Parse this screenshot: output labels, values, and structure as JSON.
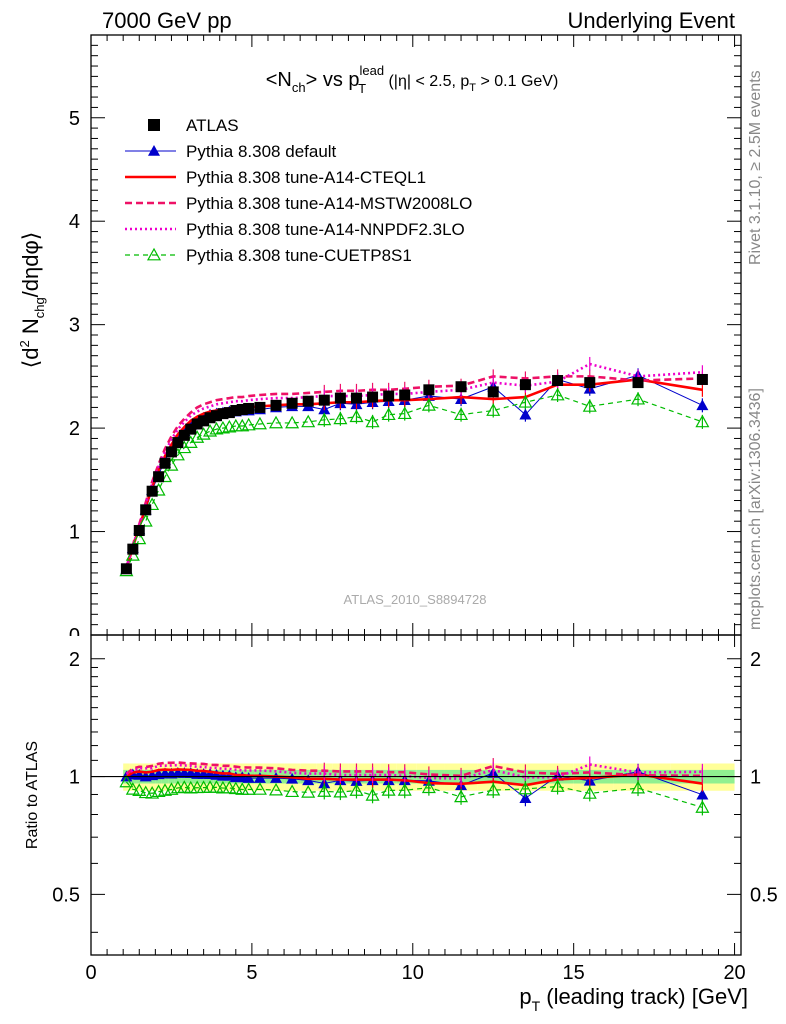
{
  "header": {
    "left": "7000 GeV pp",
    "right": "Underlying Event"
  },
  "side_labels": {
    "rivet": "Rivet 3.1.10, ≥ 2.5M events",
    "mcplots": "mcplots.cern.ch [arXiv:1306.3436]"
  },
  "watermark": "ATLAS_2010_S8894728",
  "colors": {
    "atlas": "#000000",
    "default": "#0000cc",
    "cteql1": "#ff0000",
    "mstw": "#ee1166",
    "nnpdf": "#ee00cc",
    "cuetp8s1": "#00bb00",
    "band_inner": "#90f090",
    "band_outer": "#ffff99"
  },
  "chart_data": {
    "type": "line",
    "title": "<Nch> vs pT lead (|η| < 2.5, pT > 0.1 GeV)",
    "title_parts": {
      "a": "<N",
      "a_sub": "ch",
      "b": "> vs p",
      "b_sup": "lead",
      "b_sub": "T",
      "c": " (|η| < 2.5, p",
      "c_sub": "T",
      "d": " > 0.1 GeV)"
    },
    "xlabel": "p_T (leading track) [GeV]",
    "xlabel_parts": {
      "a": "p",
      "a_sub": "T",
      "b": " (leading track) [GeV]"
    },
    "ylabel": "⟨d² N_chg/dηdφ⟩",
    "ylabel_parts": {
      "a": "⟨d",
      "a_sup": "2",
      "b": " N",
      "b_sub": "chg",
      "c": "/dηdφ⟩"
    },
    "ratio_ylabel": "Ratio to ATLAS",
    "xlim": [
      0,
      20.2
    ],
    "ylim": [
      0,
      5.8
    ],
    "ratio_ylim": [
      0.35,
      2.3
    ],
    "x_ticks": [
      0,
      5,
      10,
      15,
      20
    ],
    "y_ticks": [
      1,
      2,
      3,
      4,
      5
    ],
    "ratio_ticks": [
      "0.5",
      "1",
      "2"
    ],
    "legend_position": "top-left",
    "x": [
      1.1,
      1.3,
      1.5,
      1.7,
      1.9,
      2.1,
      2.3,
      2.5,
      2.7,
      2.9,
      3.1,
      3.3,
      3.5,
      3.7,
      3.9,
      4.1,
      4.3,
      4.5,
      4.7,
      4.9,
      5.25,
      5.75,
      6.25,
      6.75,
      7.25,
      7.75,
      8.25,
      8.75,
      9.25,
      9.75,
      10.5,
      11.5,
      12.5,
      13.5,
      14.5,
      15.5,
      17.0,
      19.0
    ],
    "series": [
      {
        "name": "ATLAS",
        "key": "atlas",
        "values": [
          0.64,
          0.83,
          1.01,
          1.21,
          1.39,
          1.53,
          1.66,
          1.77,
          1.86,
          1.93,
          1.99,
          2.04,
          2.07,
          2.1,
          2.12,
          2.14,
          2.15,
          2.17,
          2.18,
          2.19,
          2.2,
          2.22,
          2.24,
          2.26,
          2.27,
          2.29,
          2.29,
          2.3,
          2.31,
          2.32,
          2.37,
          2.4,
          2.35,
          2.42,
          2.46,
          2.44,
          2.44,
          2.47
        ],
        "rel_err_inner": 0.04,
        "rel_err_outer": 0.08
      },
      {
        "name": "Pythia 8.308 default",
        "key": "default",
        "values": [
          0.64,
          0.84,
          1.02,
          1.21,
          1.4,
          1.55,
          1.69,
          1.8,
          1.9,
          1.97,
          2.03,
          2.07,
          2.1,
          2.13,
          2.14,
          2.15,
          2.16,
          2.16,
          2.17,
          2.17,
          2.18,
          2.2,
          2.21,
          2.21,
          2.18,
          2.24,
          2.23,
          2.25,
          2.26,
          2.27,
          2.31,
          2.28,
          2.4,
          2.13,
          2.47,
          2.38,
          2.51,
          2.22
        ]
      },
      {
        "name": "Pythia 8.308 tune-A14-CTEQL1",
        "key": "cteql1",
        "values": [
          0.64,
          0.85,
          1.04,
          1.24,
          1.43,
          1.59,
          1.73,
          1.84,
          1.94,
          2.01,
          2.07,
          2.11,
          2.14,
          2.16,
          2.17,
          2.18,
          2.19,
          2.19,
          2.2,
          2.2,
          2.21,
          2.22,
          2.23,
          2.23,
          2.24,
          2.25,
          2.25,
          2.26,
          2.27,
          2.27,
          2.28,
          2.3,
          2.28,
          2.3,
          2.42,
          2.42,
          2.47,
          2.37
        ]
      },
      {
        "name": "Pythia 8.308 tune-A14-MSTW2008LO",
        "key": "mstw",
        "values": [
          0.65,
          0.87,
          1.07,
          1.28,
          1.48,
          1.65,
          1.8,
          1.92,
          2.02,
          2.09,
          2.15,
          2.2,
          2.23,
          2.25,
          2.27,
          2.28,
          2.29,
          2.3,
          2.3,
          2.31,
          2.32,
          2.33,
          2.33,
          2.34,
          2.35,
          2.36,
          2.36,
          2.37,
          2.37,
          2.38,
          2.4,
          2.41,
          2.5,
          2.48,
          2.5,
          2.5,
          2.46,
          2.48
        ]
      },
      {
        "name": "Pythia 8.308 tune-A14-NNPDF2.3LO",
        "key": "nnpdf",
        "values": [
          0.65,
          0.86,
          1.06,
          1.27,
          1.46,
          1.63,
          1.77,
          1.89,
          1.99,
          2.06,
          2.12,
          2.16,
          2.19,
          2.21,
          2.23,
          2.24,
          2.25,
          2.26,
          2.26,
          2.27,
          2.28,
          2.29,
          2.29,
          2.3,
          2.31,
          2.31,
          2.31,
          2.32,
          2.33,
          2.33,
          2.35,
          2.37,
          2.44,
          2.41,
          2.45,
          2.62,
          2.5,
          2.54
        ]
      },
      {
        "name": "Pythia 8.308 tune-CUETP8S1",
        "key": "cuetp8s1",
        "values": [
          0.62,
          0.77,
          0.93,
          1.1,
          1.26,
          1.4,
          1.53,
          1.64,
          1.74,
          1.81,
          1.86,
          1.91,
          1.94,
          1.97,
          1.99,
          2.0,
          2.01,
          2.02,
          2.02,
          2.03,
          2.04,
          2.05,
          2.05,
          2.06,
          2.08,
          2.09,
          2.11,
          2.06,
          2.13,
          2.14,
          2.22,
          2.13,
          2.17,
          2.25,
          2.32,
          2.21,
          2.28,
          2.06
        ]
      }
    ]
  }
}
